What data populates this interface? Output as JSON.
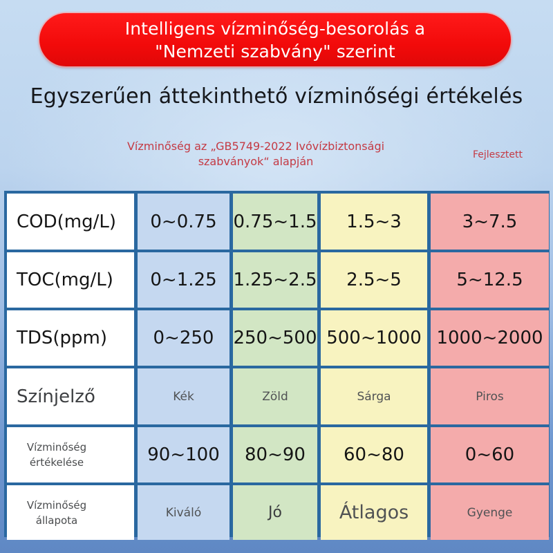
{
  "banner": {
    "line1": "Intelligens vízminőség-besorolás a",
    "line2": "\"Nemzeti szabvány\" szerint",
    "color": "#f20a0a"
  },
  "headline": "Egyszerűen áttekinthető vízminőségi értékelés",
  "note": {
    "line1": "Vízminőség az „GB5749-2022 Ivóvízbiztonsági",
    "line2": "szabványok“ alapján",
    "right": "Fejlesztett",
    "color": "#c43a44"
  },
  "table": {
    "column_colors": [
      "#ffffff",
      "#c5d8f0",
      "#d2e6c4",
      "#f8f3c0",
      "#f4abab"
    ],
    "rows": [
      {
        "label": "COD(mg/L)",
        "values": [
          "0~0.75",
          "0.75~1.5",
          "1.5~3",
          "3~7.5"
        ]
      },
      {
        "label": "TOC(mg/L)",
        "values": [
          "0~1.25",
          "1.25~2.5",
          "2.5~5",
          "5~12.5"
        ]
      },
      {
        "label": "TDS(ppm)",
        "values": [
          "0~250",
          "250~500",
          "500~1000",
          "1000~2000"
        ]
      },
      {
        "label": "Színjelző",
        "values": [
          "Kék",
          "Zöld",
          "Sárga",
          "Piros"
        ]
      },
      {
        "label_line1": "Vízminőség",
        "label_line2": "értékelése",
        "values": [
          "90~100",
          "80~90",
          "60~80",
          "0~60"
        ]
      },
      {
        "label_line1": "Vízminőség",
        "label_line2": "állapota",
        "values": [
          "Kiváló",
          "Jó",
          "Átlagos",
          "Gyenge"
        ]
      }
    ]
  }
}
